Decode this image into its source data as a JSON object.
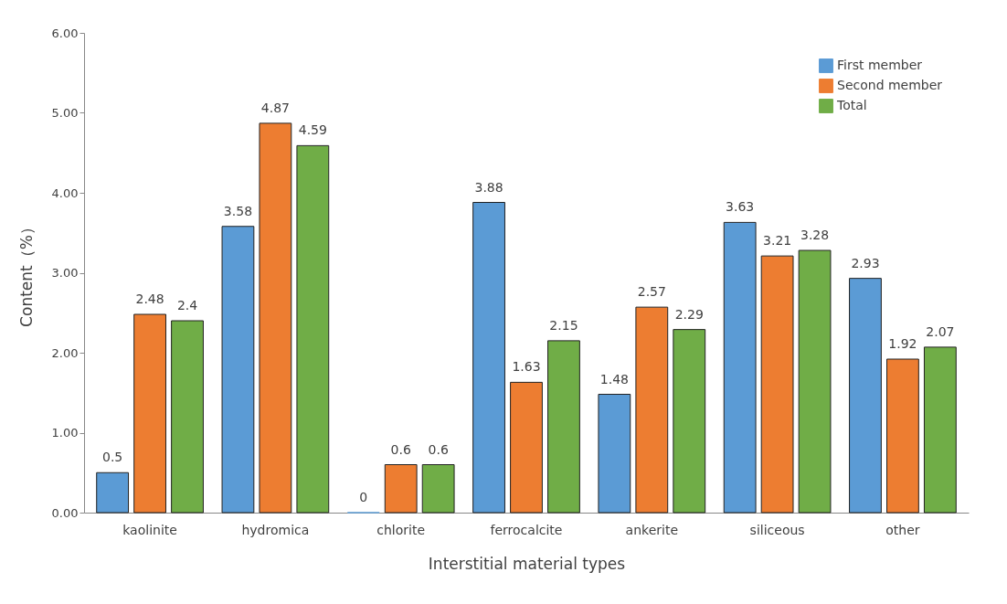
{
  "chart_data": {
    "type": "bar",
    "xlabel": "Interstitial material types",
    "ylabel": "Content（%）",
    "categories": [
      "kaolinite",
      "hydromica",
      "chlorite",
      "ferrocalcite",
      "ankerite",
      "siliceous",
      "other"
    ],
    "series": [
      {
        "name": "First member",
        "color": "#5b9bd5",
        "values": [
          0.5,
          3.58,
          0,
          3.88,
          1.48,
          3.63,
          2.93
        ]
      },
      {
        "name": "Second member",
        "color": "#ed7d31",
        "values": [
          2.48,
          4.87,
          0.6,
          1.63,
          2.57,
          3.21,
          1.92
        ]
      },
      {
        "name": "Total",
        "color": "#70ad47",
        "values": [
          2.4,
          4.59,
          0.6,
          2.15,
          2.29,
          3.28,
          2.07
        ]
      }
    ],
    "ylim": [
      0,
      6
    ],
    "yticks": [
      {
        "value": 0,
        "label": "0.00"
      },
      {
        "value": 1,
        "label": "1.00"
      },
      {
        "value": 2,
        "label": "2.00"
      },
      {
        "value": 3,
        "label": "3.00"
      },
      {
        "value": 4,
        "label": "4.00"
      },
      {
        "value": 5,
        "label": "5.00"
      },
      {
        "value": 6,
        "label": "6.00"
      }
    ],
    "data_labels": true,
    "grid": false,
    "legend": "top right"
  }
}
